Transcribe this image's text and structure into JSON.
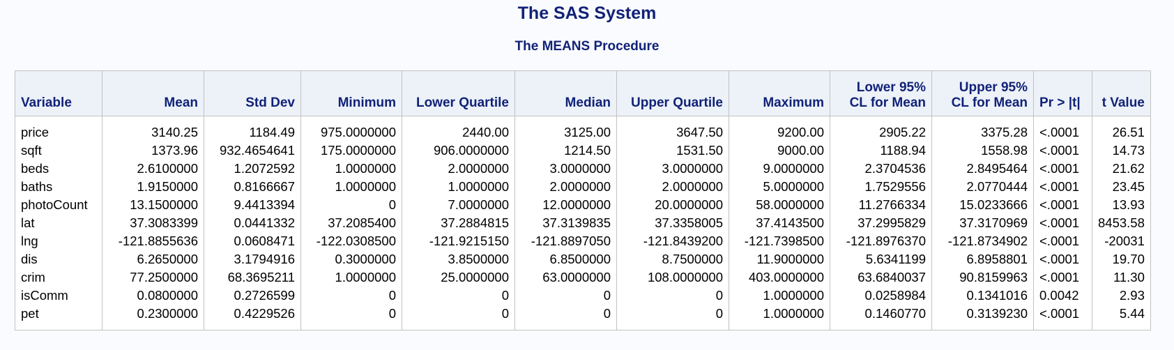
{
  "title": "The SAS System",
  "subtitle": "The MEANS Procedure",
  "headers": {
    "variable": "Variable",
    "mean": "Mean",
    "std_dev": "Std Dev",
    "minimum": "Minimum",
    "lower_quartile": "Lower Quartile",
    "median": "Median",
    "upper_quartile": "Upper Quartile",
    "maximum": "Maximum",
    "lower_cl_1": "Lower 95%",
    "lower_cl_2": "CL for Mean",
    "upper_cl_1": "Upper 95%",
    "upper_cl_2": "CL for Mean",
    "pr_t": "Pr > |t|",
    "t_value": "t Value"
  },
  "rows": [
    {
      "variable": "price",
      "mean": "3140.25",
      "std_dev": "1184.49",
      "minimum": "975.0000000",
      "lower_quartile": "2440.00",
      "median": "3125.00",
      "upper_quartile": "3647.50",
      "maximum": "9200.00",
      "lower_cl": "2905.22",
      "upper_cl": "3375.28",
      "pr_t": "<.0001",
      "t_value": "26.51"
    },
    {
      "variable": "sqft",
      "mean": "1373.96",
      "std_dev": "932.4654641",
      "minimum": "175.0000000",
      "lower_quartile": "906.0000000",
      "median": "1214.50",
      "upper_quartile": "1531.50",
      "maximum": "9000.00",
      "lower_cl": "1188.94",
      "upper_cl": "1558.98",
      "pr_t": "<.0001",
      "t_value": "14.73"
    },
    {
      "variable": "beds",
      "mean": "2.6100000",
      "std_dev": "1.2072592",
      "minimum": "1.0000000",
      "lower_quartile": "2.0000000",
      "median": "3.0000000",
      "upper_quartile": "3.0000000",
      "maximum": "9.0000000",
      "lower_cl": "2.3704536",
      "upper_cl": "2.8495464",
      "pr_t": "<.0001",
      "t_value": "21.62"
    },
    {
      "variable": "baths",
      "mean": "1.9150000",
      "std_dev": "0.8166667",
      "minimum": "1.0000000",
      "lower_quartile": "1.0000000",
      "median": "2.0000000",
      "upper_quartile": "2.0000000",
      "maximum": "5.0000000",
      "lower_cl": "1.7529556",
      "upper_cl": "2.0770444",
      "pr_t": "<.0001",
      "t_value": "23.45"
    },
    {
      "variable": "photoCount",
      "mean": "13.1500000",
      "std_dev": "9.4413394",
      "minimum": "0",
      "lower_quartile": "7.0000000",
      "median": "12.0000000",
      "upper_quartile": "20.0000000",
      "maximum": "58.0000000",
      "lower_cl": "11.2766334",
      "upper_cl": "15.0233666",
      "pr_t": "<.0001",
      "t_value": "13.93"
    },
    {
      "variable": "lat",
      "mean": "37.3083399",
      "std_dev": "0.0441332",
      "minimum": "37.2085400",
      "lower_quartile": "37.2884815",
      "median": "37.3139835",
      "upper_quartile": "37.3358005",
      "maximum": "37.4143500",
      "lower_cl": "37.2995829",
      "upper_cl": "37.3170969",
      "pr_t": "<.0001",
      "t_value": "8453.58"
    },
    {
      "variable": "lng",
      "mean": "-121.8855636",
      "std_dev": "0.0608471",
      "minimum": "-122.0308500",
      "lower_quartile": "-121.9215150",
      "median": "-121.8897050",
      "upper_quartile": "-121.8439200",
      "maximum": "-121.7398500",
      "lower_cl": "-121.8976370",
      "upper_cl": "-121.8734902",
      "pr_t": "<.0001",
      "t_value": "-20031"
    },
    {
      "variable": "dis",
      "mean": "6.2650000",
      "std_dev": "3.1794916",
      "minimum": "0.3000000",
      "lower_quartile": "3.8500000",
      "median": "6.8500000",
      "upper_quartile": "8.7500000",
      "maximum": "11.9000000",
      "lower_cl": "5.6341199",
      "upper_cl": "6.8958801",
      "pr_t": "<.0001",
      "t_value": "19.70"
    },
    {
      "variable": "crim",
      "mean": "77.2500000",
      "std_dev": "68.3695211",
      "minimum": "1.0000000",
      "lower_quartile": "25.0000000",
      "median": "63.0000000",
      "upper_quartile": "108.0000000",
      "maximum": "403.0000000",
      "lower_cl": "63.6840037",
      "upper_cl": "90.8159963",
      "pr_t": "<.0001",
      "t_value": "11.30"
    },
    {
      "variable": "isComm",
      "mean": "0.0800000",
      "std_dev": "0.2726599",
      "minimum": "0",
      "lower_quartile": "0",
      "median": "0",
      "upper_quartile": "0",
      "maximum": "1.0000000",
      "lower_cl": "0.0258984",
      "upper_cl": "0.1341016",
      "pr_t": "0.0042",
      "t_value": "2.93"
    },
    {
      "variable": "pet",
      "mean": "0.2300000",
      "std_dev": "0.4229526",
      "minimum": "0",
      "lower_quartile": "0",
      "median": "0",
      "upper_quartile": "0",
      "maximum": "1.0000000",
      "lower_cl": "0.1460770",
      "upper_cl": "0.3139230",
      "pr_t": "<.0001",
      "t_value": "5.44"
    }
  ]
}
